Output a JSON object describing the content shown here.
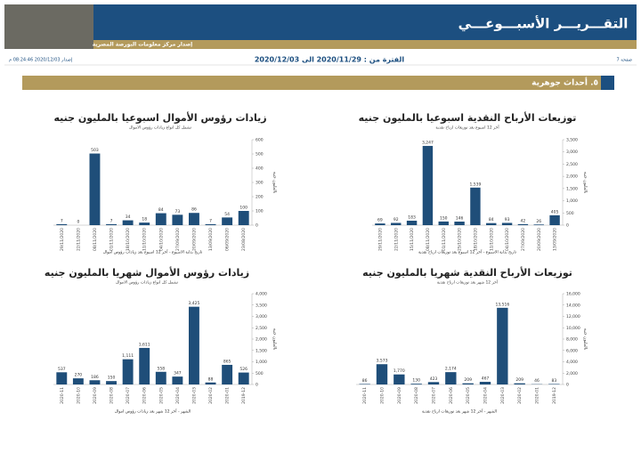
{
  "header": {
    "title": "التقـــريـــر الأسبـــوعـــي",
    "subtitle": "إصدار مركز معلومات البورصة المصرية",
    "page": "صفحة 7",
    "period": "الفترة من : 2020/11/29 الى 2020/12/03",
    "issued": "إصدار 2020/12/03 08:24:46 م"
  },
  "section": {
    "title": "٥. أحداث جوهرية"
  },
  "chart_data": [
    {
      "type": "bar",
      "title": "توزيعات الأرباح النقدية اسبوعيا بالمليون جنيه",
      "subtitle": "آخر 12 اسبوع بعد توزيعات ارباح نقدية",
      "x_label": "تاريخ بداية الاسبوع - آخر 12 اسبوع بعد توزيعات ارباح نقدية",
      "y_label": "بالمليون جنيه",
      "color": "#1f4e79",
      "categories": [
        "29/11/2020",
        "22/11/2020",
        "15/11/2020",
        "08/11/2020",
        "01/11/2020",
        "25/10/2020",
        "18/10/2020",
        "11/10/2020",
        "04/10/2020",
        "27/09/2020",
        "20/09/2020",
        "13/09/2020"
      ],
      "values": [
        69,
        92,
        183,
        3247,
        150,
        146,
        1539,
        84,
        93,
        42,
        26,
        405
      ],
      "value_labels": [
        "69",
        "92",
        "183",
        "3,247",
        "150",
        "146",
        "1,539",
        "84",
        "93",
        "42",
        "26",
        "405"
      ],
      "ylim": [
        0,
        3500
      ],
      "yticks": [
        0,
        500,
        {
          "value": 1000,
          "label": "1,000"
        },
        {
          "value": 1500,
          "label": "1,500"
        },
        {
          "value": 2000,
          "label": "2,000"
        },
        {
          "value": 2500,
          "label": "2,500"
        },
        {
          "value": 3000,
          "label": "3,000"
        },
        {
          "value": 3500,
          "label": "3,500"
        }
      ]
    },
    {
      "type": "bar",
      "title": "زيادات رؤوس الأموال اسبوعيا بالمليون جنيه",
      "subtitle": "تشمل كل انواع زيادات رؤوس الاموال",
      "x_label": "تاريخ بداية الاسبوع - آخر 12 اسبوع بعد زيادات رؤوس اموال",
      "y_label": "بالمليون جنيه",
      "color": "#1f4e79",
      "categories": [
        "29/11/2020",
        "22/11/2020",
        "08/11/2020",
        "01/11/2020",
        "18/10/2020",
        "11/10/2020",
        "04/10/2020",
        "27/09/2020",
        "20/09/2020",
        "13/09/2020",
        "06/09/2020",
        "23/08/2020"
      ],
      "values": [
        7,
        0,
        503,
        7,
        34,
        18,
        84,
        73,
        86,
        7,
        54,
        100
      ],
      "ylim": [
        0,
        600
      ],
      "yticks": [
        0,
        100,
        200,
        300,
        400,
        500,
        600
      ]
    },
    {
      "type": "bar",
      "title": "توزيعات الأرباح النقدية شهريا بالمليون جنيه",
      "subtitle": "آخر 12 شهر بعد توزيعات ارباح نقدية",
      "x_label": "الشهر - آخر 12 شهر بعد توزيعات ارباح نقدية",
      "y_label": "بالمليون جنيه",
      "color": "#1f4e79",
      "categories": [
        "2020-11",
        "2020-10",
        "2020-09",
        "2020-08",
        "2020-07",
        "2020-06",
        "2020-05",
        "2020-04",
        "2020-03",
        "2020-02",
        "2020-01",
        "2019-12"
      ],
      "values": [
        86,
        3573,
        1770,
        130,
        423,
        2174,
        209,
        467,
        13516,
        209,
        46,
        83
      ],
      "value_labels": [
        "86",
        "3,573",
        "1,770",
        "130",
        "423",
        "2,174",
        "209",
        "467",
        "13,516",
        "209",
        "46",
        "83"
      ],
      "ylim": [
        0,
        16000
      ],
      "yticks": [
        0,
        {
          "value": 2000,
          "label": "2,000"
        },
        {
          "value": 4000,
          "label": "4,000"
        },
        {
          "value": 6000,
          "label": "6,000"
        },
        {
          "value": 8000,
          "label": "8,000"
        },
        {
          "value": 10000,
          "label": "10,000"
        },
        {
          "value": 12000,
          "label": "12,000"
        },
        {
          "value": 14000,
          "label": "14,000"
        },
        {
          "value": 16000,
          "label": "16,000"
        }
      ]
    },
    {
      "type": "bar",
      "title": "زيادات رؤوس الأموال شهريا بالمليون جنيه",
      "subtitle": "تشمل كل انواع زيادات رؤوس الاموال",
      "x_label": "الشهر - آخر 12 شهر بعد زيادات رؤوس اموال",
      "y_label": "بالمليون جنيه",
      "color": "#1f4e79",
      "categories": [
        "2020-11",
        "2020-10",
        "2020-09",
        "2020-08",
        "2020-07",
        "2020-06",
        "2020-05",
        "2020-04",
        "2020-03",
        "2020-02",
        "2020-01",
        "2019-12"
      ],
      "values": [
        537,
        270,
        186,
        150,
        1111,
        1611,
        558,
        347,
        3425,
        88,
        865,
        526
      ],
      "value_labels": [
        "537",
        "270",
        "186",
        "150",
        "1,111",
        "1,611",
        "558",
        "347",
        "3,425",
        "88",
        "865",
        "526"
      ],
      "ylim": [
        0,
        4000
      ],
      "yticks": [
        0,
        500,
        {
          "value": 1000,
          "label": "1,000"
        },
        {
          "value": 1500,
          "label": "1,500"
        },
        {
          "value": 2000,
          "label": "2,000"
        },
        {
          "value": 2500,
          "label": "2,500"
        },
        {
          "value": 3000,
          "label": "3,000"
        },
        {
          "value": 3500,
          "label": "3,500"
        },
        {
          "value": 4000,
          "label": "4,000"
        }
      ]
    }
  ]
}
